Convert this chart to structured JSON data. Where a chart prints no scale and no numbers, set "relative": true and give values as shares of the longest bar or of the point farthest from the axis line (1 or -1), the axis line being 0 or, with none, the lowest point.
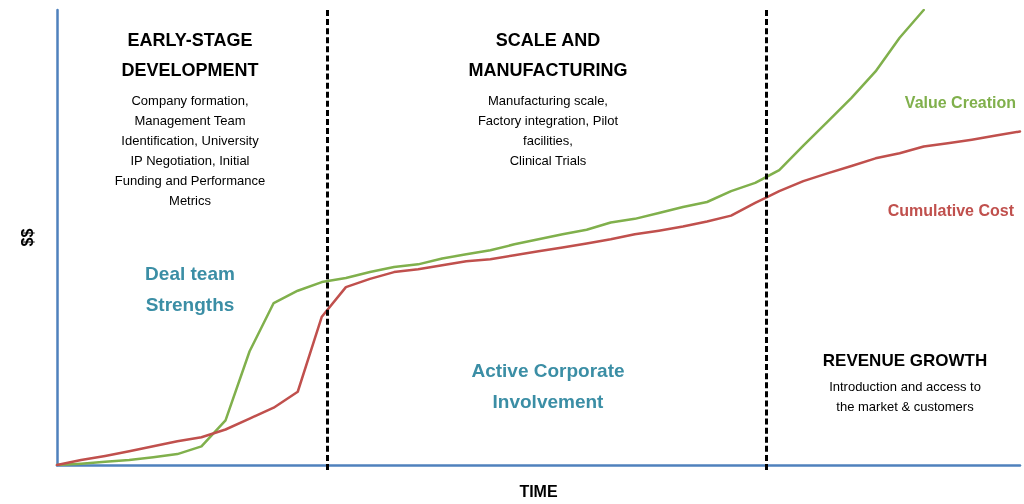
{
  "chart_data": {
    "type": "line",
    "relative": true,
    "xlabel": "TIME",
    "ylabel": "$$",
    "grid": false,
    "marker": "none",
    "line_style": "solid",
    "categories": [
      null,
      null,
      null,
      null,
      null,
      null,
      null,
      null,
      null,
      null,
      null,
      null,
      null,
      null,
      null,
      null,
      null,
      null,
      null,
      null,
      null,
      null,
      null,
      null,
      null,
      null,
      null,
      null,
      null,
      null,
      null,
      null,
      null,
      null,
      null,
      null,
      null,
      null,
      null,
      null,
      null
    ],
    "series": [
      {
        "name": "Value Creation",
        "color": "#80b04c",
        "values": [
          0,
          0.003,
          0.007,
          0.011,
          0.017,
          0.024,
          0.041,
          0.098,
          0.25,
          0.356,
          0.383,
          0.402,
          0.411,
          0.424,
          0.435,
          0.441,
          0.454,
          0.463,
          0.472,
          0.485,
          0.496,
          0.507,
          0.517,
          0.533,
          0.541,
          0.554,
          0.567,
          0.578,
          0.602,
          0.62,
          0.648,
          0.702,
          0.754,
          0.807,
          0.865,
          0.939,
          1,
          null,
          null,
          null,
          null
        ]
      },
      {
        "name": "Cumulative Cost",
        "color": "#c0504d",
        "values": [
          0,
          0.011,
          0.02,
          0.03,
          0.041,
          0.052,
          0.061,
          0.078,
          0.102,
          0.126,
          0.161,
          0.326,
          0.391,
          0.409,
          0.424,
          0.43,
          0.439,
          0.448,
          0.452,
          0.461,
          0.47,
          0.478,
          0.487,
          0.496,
          0.507,
          0.515,
          0.524,
          0.535,
          0.548,
          0.576,
          0.602,
          0.624,
          0.641,
          0.657,
          0.674,
          0.685,
          0.7,
          0.707,
          0.715,
          0.724,
          0.733
        ]
      }
    ],
    "annotations": [
      "EARLY-STAGE\nDEVELOPMENT",
      "Company formation,\nManagement Team\nIdentification, University\nIP Negotiation, Initial\nFunding and Performance\nMetrics",
      "Deal team\nStrengths",
      "SCALE AND\nMANUFACTURING",
      "Manufacturing scale,\nFactory integration, Pilot\nfacilities,\nClinical Trials",
      "Active Corporate\nInvolvement",
      "REVENUE GROWTH",
      "Introduction and access to\nthe market & customers"
    ]
  }
}
